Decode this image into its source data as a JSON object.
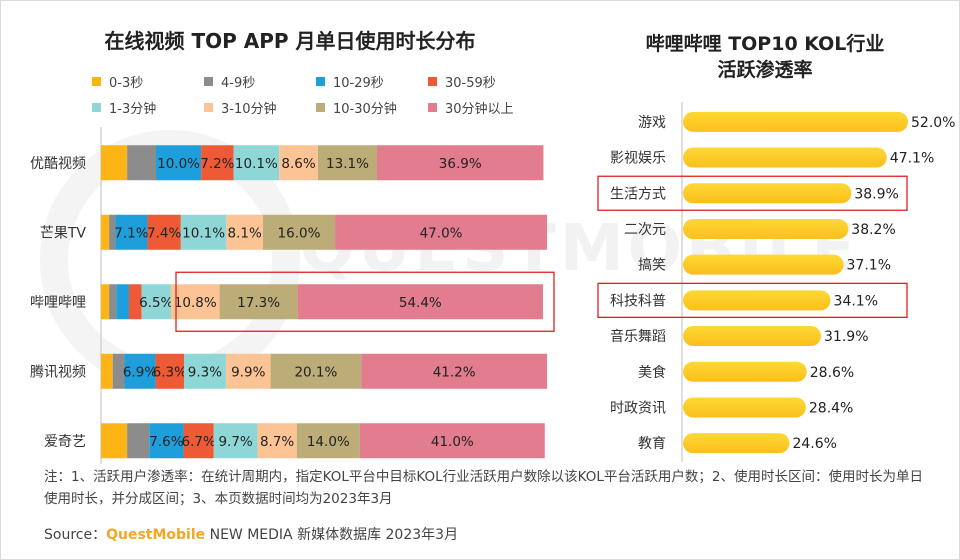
{
  "left": {
    "title": "在线视频 TOP APP 月单日使用时长分布"
  },
  "right": {
    "title_line1": "哔哩哔哩 TOP10 KOL行业",
    "title_line2": "活跃渗透率"
  },
  "note": "注：1、活跃用户渗透率：在统计周期内，指定KOL平台中目标KOL行业活跃用户数除以该KOL平台活跃用户数；2、使用时长区间：使用时长为单日使用时长，并分成区间；3、本页数据时间均为2023年3月",
  "source": {
    "prefix": "Source：",
    "brand": "QuestMobile",
    "rest": " NEW MEDIA 新媒体数据库 2023年3月"
  },
  "watermark": "QUESTMOBILE",
  "chart_data": [
    {
      "type": "bar",
      "orientation": "horizontal",
      "stacked": true,
      "title": "在线视频 TOP APP 月单日使用时长分布",
      "categories": [
        "优酷视频",
        "芒果TV",
        "哔哩哔哩",
        "腾讯视频",
        "爱奇艺"
      ],
      "xlim": [
        0,
        100
      ],
      "legend_position": "top",
      "series": [
        {
          "name": "0-3秒",
          "color": "#FDB515",
          "values": [
            5.8,
            1.8,
            1.8,
            2.6,
            5.8
          ],
          "labels": [
            "",
            "",
            "",
            "",
            ""
          ]
        },
        {
          "name": "4-9秒",
          "color": "#8C8C8C",
          "values": [
            6.4,
            1.4,
            1.6,
            2.6,
            4.9
          ],
          "labels": [
            "",
            "",
            "",
            "",
            ""
          ]
        },
        {
          "name": "10-29秒",
          "color": "#1E9FDC",
          "values": [
            10.0,
            7.1,
            2.8,
            6.9,
            7.6
          ],
          "labels": [
            "10.0%",
            "7.1%",
            "",
            "6.9%",
            "7.6%"
          ]
        },
        {
          "name": "30-59秒",
          "color": "#EE5A36",
          "values": [
            7.2,
            7.4,
            2.8,
            6.3,
            6.7
          ],
          "labels": [
            "7.2%",
            "7.4%",
            "",
            "6.3%",
            "6.7%"
          ]
        },
        {
          "name": "1-3分钟",
          "color": "#8FD7D7",
          "values": [
            10.1,
            10.1,
            6.5,
            9.3,
            9.7
          ],
          "labels": [
            "10.1%",
            "10.1%",
            "6.5%",
            "9.3%",
            "9.7%"
          ]
        },
        {
          "name": "3-10分钟",
          "color": "#FCC494",
          "values": [
            8.6,
            8.1,
            10.8,
            9.9,
            8.7
          ],
          "labels": [
            "8.6%",
            "8.1%",
            "10.8%",
            "9.9%",
            "8.7%"
          ]
        },
        {
          "name": "10-30分钟",
          "color": "#BBAC78",
          "values": [
            13.1,
            16.0,
            17.3,
            20.1,
            14.0
          ],
          "labels": [
            "13.1%",
            "16.0%",
            "17.3%",
            "20.1%",
            "14.0%"
          ]
        },
        {
          "name": "30分钟以上",
          "color": "#E27C8F",
          "values": [
            36.9,
            47.0,
            54.4,
            41.2,
            41.0
          ],
          "labels": [
            "36.9%",
            "47.0%",
            "54.4%",
            "41.2%",
            "41.0%"
          ]
        }
      ],
      "highlight_category": "哔哩哔哩",
      "highlight_color": "#E02020"
    },
    {
      "type": "bar",
      "orientation": "horizontal",
      "title": "哔哩哔哩 TOP10 KOL行业活跃渗透率",
      "categories": [
        "游戏",
        "影视娱乐",
        "生活方式",
        "二次元",
        "搞笑",
        "科技科普",
        "音乐舞蹈",
        "美食",
        "时政资讯",
        "教育"
      ],
      "values": [
        52.0,
        47.1,
        38.9,
        38.2,
        37.1,
        34.1,
        31.9,
        28.6,
        28.4,
        24.6
      ],
      "labels": [
        "52.0%",
        "47.1%",
        "38.9%",
        "38.2%",
        "37.1%",
        "34.1%",
        "31.9%",
        "28.6%",
        "28.4%",
        "24.6%"
      ],
      "xlim": [
        0,
        55
      ],
      "bar_color_start": "#FDD835",
      "bar_color_end": "#FBBF1D",
      "highlight_categories": [
        "生活方式",
        "科技科普"
      ],
      "highlight_color": "#E02020"
    }
  ]
}
